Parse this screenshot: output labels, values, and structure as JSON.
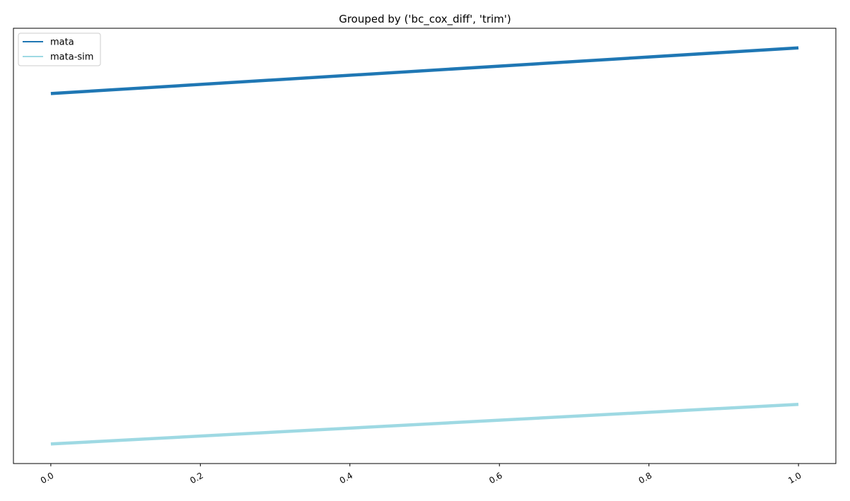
{
  "chart_data": {
    "type": "line",
    "title": "Grouped by ('bc_cox_diff', 'trim')",
    "xlabel": "",
    "ylabel": "",
    "x": [
      0.0,
      1.0
    ],
    "xlim": [
      -0.05,
      1.05
    ],
    "ylim": [
      0,
      1
    ],
    "xticks": [
      {
        "value": 0.0,
        "label": "0.0"
      },
      {
        "value": 0.2,
        "label": "0.2"
      },
      {
        "value": 0.4,
        "label": "0.4"
      },
      {
        "value": 0.6,
        "label": "0.6"
      },
      {
        "value": 0.8,
        "label": "0.8"
      },
      {
        "value": 1.0,
        "label": "1.0"
      }
    ],
    "series": [
      {
        "name": "mata",
        "values": [
          0.85,
          0.955
        ],
        "color": "#1f77b4"
      },
      {
        "name": "mata-sim",
        "values": [
          0.045,
          0.136
        ],
        "color": "#9ed9e3"
      }
    ],
    "legend": "top-left",
    "grid": false
  }
}
